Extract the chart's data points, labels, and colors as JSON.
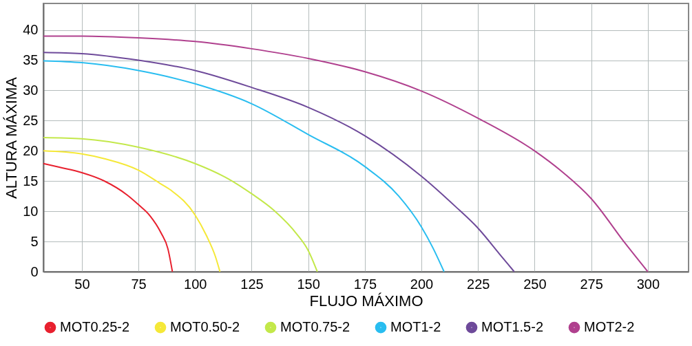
{
  "chart_data": {
    "type": "line",
    "xlabel": "FLUJO MÁXIMO",
    "ylabel": "ALTURA MÁXIMA",
    "xlim": [
      33,
      318
    ],
    "xticks": [
      50,
      75,
      100,
      125,
      150,
      175,
      200,
      225,
      250,
      275,
      300
    ],
    "ylim": [
      0,
      44.4
    ],
    "yticks": [
      0,
      5,
      10,
      15,
      20,
      25,
      30,
      35,
      40
    ],
    "grid": true,
    "legend": "bottom",
    "marker": "none",
    "line_style": "solid",
    "series": [
      {
        "name": "MOT0.25-2",
        "color": "#e8202e",
        "x": [
          33,
          40,
          50,
          60,
          70,
          75,
          80,
          85,
          88,
          90
        ],
        "values": [
          17.9,
          17.3,
          16.4,
          15.0,
          12.7,
          11.1,
          9.3,
          6.4,
          3.8,
          0
        ]
      },
      {
        "name": "MOT0.50-2",
        "color": "#f5e838",
        "x": [
          33,
          50,
          60,
          75,
          85,
          90,
          100,
          105,
          109,
          111
        ],
        "values": [
          20.0,
          19.5,
          18.7,
          16.8,
          14.5,
          13.3,
          9.4,
          6.0,
          2.5,
          0
        ]
      },
      {
        "name": "MOT0.75-2",
        "color": "#c3e84a",
        "x": [
          33,
          50,
          75,
          100,
          115,
          125,
          135,
          145,
          150,
          154
        ],
        "values": [
          22.2,
          22.0,
          20.6,
          17.9,
          15.3,
          12.9,
          10.1,
          6.2,
          3.5,
          0
        ]
      },
      {
        "name": "MOT1-2",
        "color": "#29bdf0",
        "x": [
          33,
          50,
          75,
          100,
          125,
          150,
          175,
          190,
          200,
          205,
          210
        ],
        "values": [
          34.9,
          34.6,
          33.3,
          31.1,
          27.8,
          22.7,
          17.4,
          12.5,
          7.4,
          4.0,
          0
        ]
      },
      {
        "name": "MOT1.5-2",
        "color": "#6e4a9a",
        "x": [
          33,
          50,
          75,
          100,
          125,
          150,
          175,
          200,
          215,
          225,
          235,
          241
        ],
        "values": [
          36.3,
          36.1,
          35.0,
          33.3,
          30.5,
          27.2,
          22.5,
          15.8,
          10.8,
          7.2,
          2.7,
          0
        ]
      },
      {
        "name": "MOT2-2",
        "color": "#b0408e",
        "x": [
          33,
          50,
          75,
          100,
          125,
          150,
          175,
          200,
          225,
          250,
          262,
          275,
          290,
          300
        ],
        "values": [
          39.0,
          39.0,
          38.7,
          38.1,
          36.9,
          35.3,
          33.1,
          29.9,
          25.4,
          20.0,
          16.6,
          12.1,
          4.7,
          0
        ]
      }
    ]
  }
}
